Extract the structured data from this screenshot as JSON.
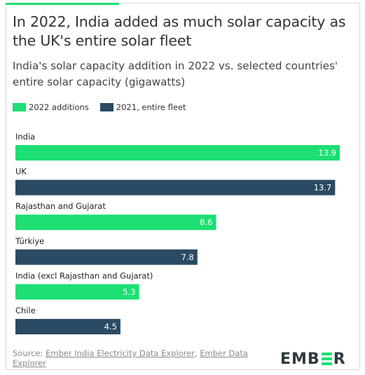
{
  "title": "In 2022, India added as much solar capacity as the UK's entire solar fleet",
  "subtitle": "India's solar capacity addition in 2022 vs. selected countries' entire solar capacity (gigawatts)",
  "legend": [
    {
      "label": "2022 additions",
      "color": "#1ddf73"
    },
    {
      "label": "2021, entire fleet",
      "color": "#2a4b63"
    }
  ],
  "source": {
    "prefix": "Source: ",
    "link1": "Ember India Electricity Data Explorer",
    "separator": ", ",
    "link2": "Ember Data Explorer"
  },
  "logo": {
    "text_left": "EMB",
    "text_right": "R"
  },
  "colors": {
    "green": "#1ddf73",
    "navy": "#2a4b63"
  },
  "chart_data": {
    "type": "bar",
    "orientation": "horizontal",
    "xlim": [
      0,
      13.9
    ],
    "grid": false,
    "legend_position": "top-left",
    "categories": [
      "India",
      "UK",
      "Rajasthan and Gujarat",
      "Türkiye",
      "India (excl Rajasthan and Gujarat)",
      "Chile"
    ],
    "values": [
      13.9,
      13.7,
      8.6,
      7.8,
      5.3,
      4.5
    ],
    "value_labels": [
      "13.9",
      "13.7",
      "8.6",
      "7.8",
      "5.3",
      "4.5"
    ],
    "series_index": [
      0,
      1,
      0,
      1,
      0,
      1
    ],
    "series": [
      {
        "name": "2022 additions",
        "color": "#1ddf73"
      },
      {
        "name": "2021, entire fleet",
        "color": "#2a4b63"
      }
    ]
  }
}
